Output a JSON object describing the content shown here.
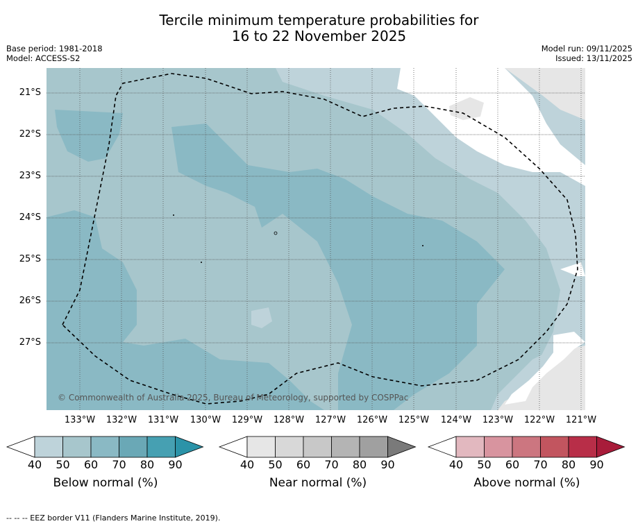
{
  "title_line1": "Tercile minimum temperature probabilities for",
  "title_line2": "16 to 22 November 2025",
  "meta_left": [
    "Base period: 1981-2018",
    "Model: ACCESS-S2"
  ],
  "meta_right": [
    "Model run: 09/11/2025",
    "Issued: 13/11/2025"
  ],
  "lat_labels": [
    "21°S",
    "22°S",
    "23°S",
    "24°S",
    "25°S",
    "26°S",
    "27°S"
  ],
  "lon_labels": [
    "133°W",
    "132°W",
    "131°W",
    "130°W",
    "129°W",
    "128°W",
    "127°W",
    "126°W",
    "125°W",
    "124°W",
    "123°W",
    "122°W",
    "121°W"
  ],
  "copyright": "© Commonwealth of Australia 2025, Bureau of Meteorology, supported by COSPPac",
  "colorbars": [
    {
      "label": "Below normal (%)",
      "ticks": [
        "40",
        "50",
        "60",
        "70",
        "80",
        "90"
      ],
      "colors": [
        "#ffffff",
        "#bed3da",
        "#a7c6cc",
        "#8ab9c4",
        "#6aa8b6",
        "#46a0b2",
        "#2b93a8"
      ]
    },
    {
      "label": "Near normal (%)",
      "ticks": [
        "40",
        "50",
        "60",
        "70",
        "80",
        "90"
      ],
      "colors": [
        "#ffffff",
        "#e6e6e6",
        "#d8d8d8",
        "#c8c8c8",
        "#b4b4b4",
        "#a0a0a0",
        "#7a7a7a"
      ]
    },
    {
      "label": "Above normal (%)",
      "ticks": [
        "40",
        "50",
        "60",
        "70",
        "80",
        "90"
      ],
      "colors": [
        "#ffffff",
        "#e2b8bf",
        "#d8949f",
        "#cc7680",
        "#c2555f",
        "#b82e48",
        "#a81c3a"
      ]
    }
  ],
  "footer": "--  --  -- EEZ border V11 (Flanders Marine Institute, 2019).",
  "colors": {
    "bg_map": "#a7c6cc",
    "dark_band": "#8ab9c4",
    "light_band": "#bed3da",
    "near_grey": "#e6e6e6"
  }
}
